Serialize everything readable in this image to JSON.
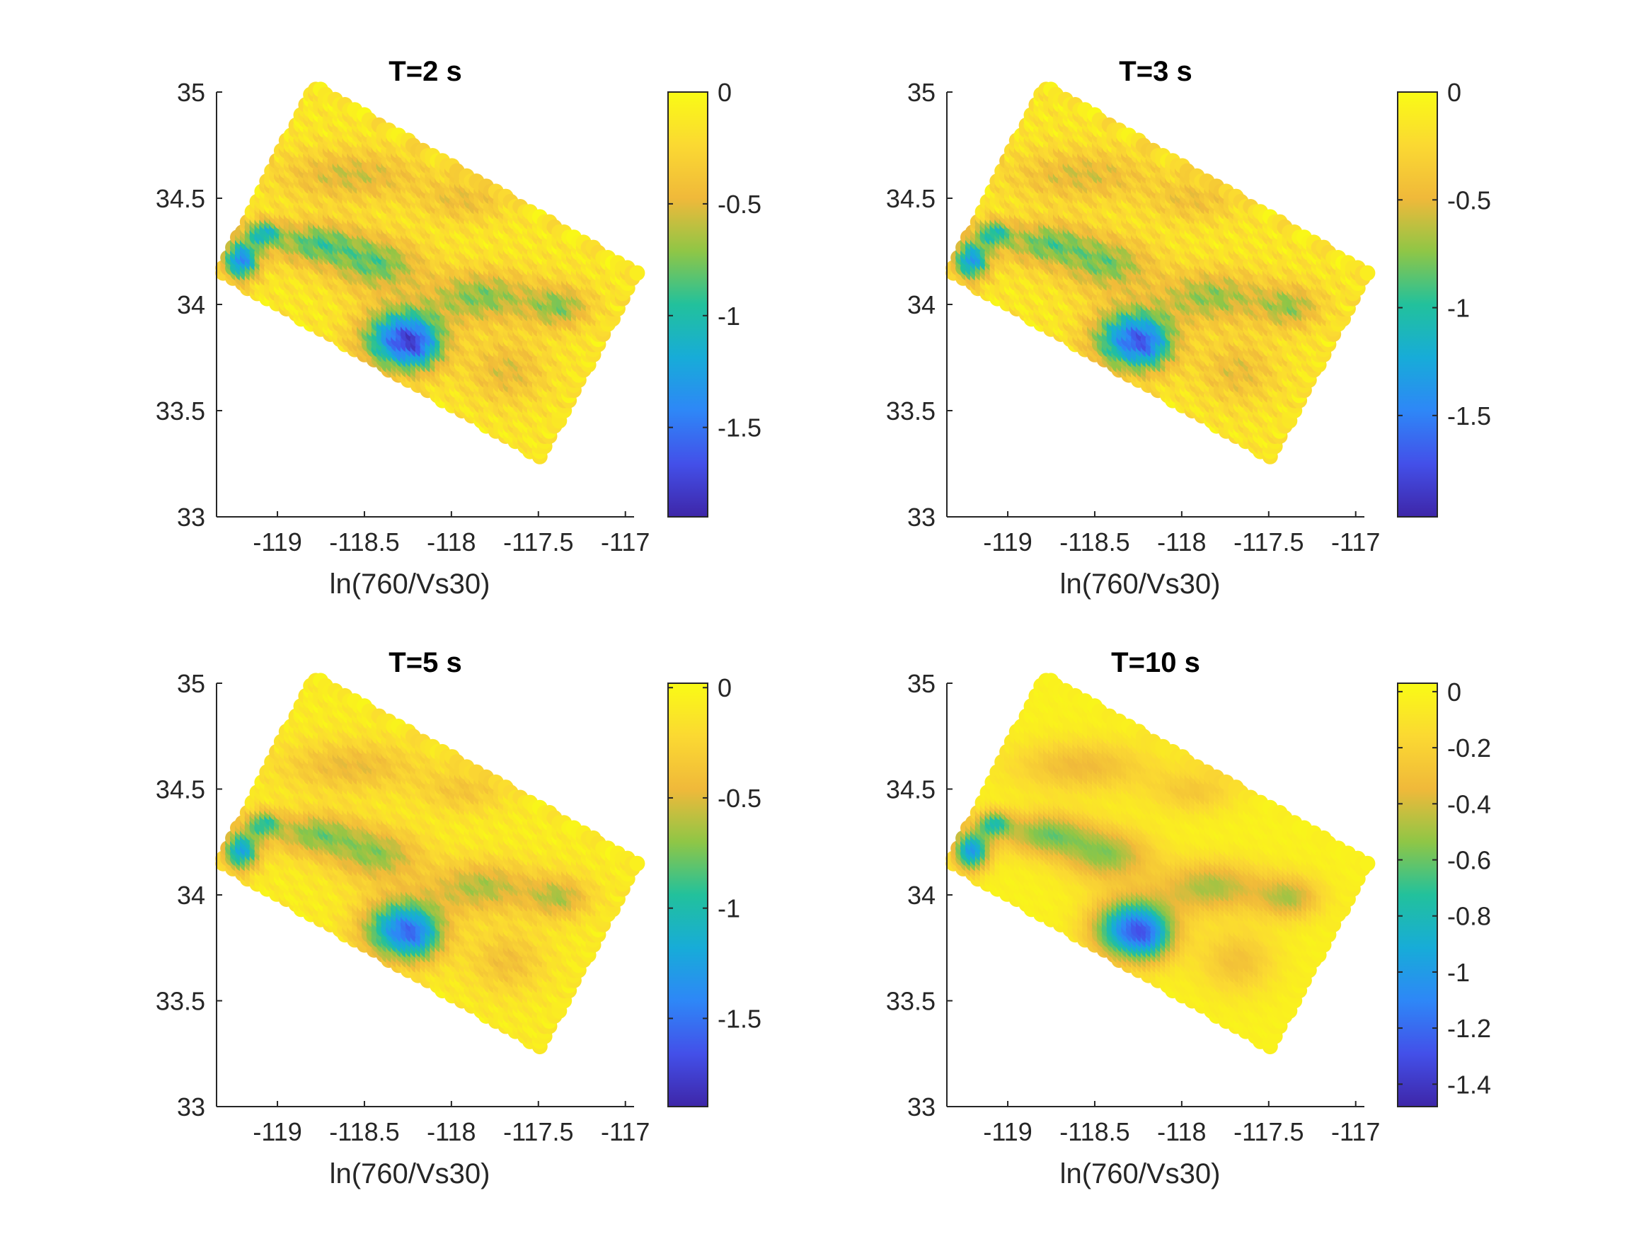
{
  "chart_data": [
    {
      "type": "scatter",
      "title": "T=2 s",
      "xlabel": "ln(760/Vs30)",
      "ylabel": "",
      "xlim": [
        -119.35,
        -116.95
      ],
      "ylim": [
        33,
        35
      ],
      "xticks": [
        -119,
        -118.5,
        -118,
        -117.5,
        -117
      ],
      "xticklabels": [
        "-119",
        "-118.5",
        "-118",
        "-117.5",
        "-117"
      ],
      "yticks": [
        33,
        33.5,
        34,
        34.5,
        35
      ],
      "yticklabels": [
        "33",
        "33.5",
        "34",
        "34.5",
        "35"
      ],
      "colorbar": {
        "range": [
          -1.9,
          0
        ],
        "ticks": [
          0,
          -0.5,
          -1,
          -1.5
        ],
        "ticklabels": [
          "0",
          "-0.5",
          "-1",
          "-1.5"
        ]
      },
      "grid": false
    },
    {
      "type": "scatter",
      "title": "T=3 s",
      "xlabel": "ln(760/Vs30)",
      "ylabel": "",
      "xlim": [
        -119.35,
        -116.95
      ],
      "ylim": [
        33,
        35
      ],
      "xticks": [
        -119,
        -118.5,
        -118,
        -117.5,
        -117
      ],
      "xticklabels": [
        "-119",
        "-118.5",
        "-118",
        "-117.5",
        "-117"
      ],
      "yticks": [
        33,
        33.5,
        34,
        34.5,
        35
      ],
      "yticklabels": [
        "33",
        "33.5",
        "34",
        "34.5",
        "35"
      ],
      "colorbar": {
        "range": [
          -1.97,
          0
        ],
        "ticks": [
          0,
          -0.5,
          -1,
          -1.5
        ],
        "ticklabels": [
          "0",
          "-0.5",
          "-1",
          "-1.5"
        ]
      },
      "grid": false
    },
    {
      "type": "scatter",
      "title": "T=5 s",
      "xlabel": "ln(760/Vs30)",
      "ylabel": "",
      "xlim": [
        -119.35,
        -116.95
      ],
      "ylim": [
        33,
        35
      ],
      "xticks": [
        -119,
        -118.5,
        -118,
        -117.5,
        -117
      ],
      "xticklabels": [
        "-119",
        "-118.5",
        "-118",
        "-117.5",
        "-117"
      ],
      "yticks": [
        33,
        33.5,
        34,
        34.5,
        35
      ],
      "yticklabels": [
        "33",
        "33.5",
        "34",
        "34.5",
        "35"
      ],
      "colorbar": {
        "range": [
          -1.9,
          0.02
        ],
        "ticks": [
          0,
          -0.5,
          -1,
          -1.5
        ],
        "ticklabels": [
          "0",
          "-0.5",
          "-1",
          "-1.5"
        ]
      },
      "grid": false
    },
    {
      "type": "scatter",
      "title": "T=10 s",
      "xlabel": "ln(760/Vs30)",
      "ylabel": "",
      "xlim": [
        -119.35,
        -116.95
      ],
      "ylim": [
        33,
        35
      ],
      "xticks": [
        -119,
        -118.5,
        -118,
        -117.5,
        -117
      ],
      "xticklabels": [
        "-119",
        "-118.5",
        "-118",
        "-117.5",
        "-117"
      ],
      "yticks": [
        33,
        33.5,
        34,
        34.5,
        35
      ],
      "yticklabels": [
        "33",
        "33.5",
        "34",
        "34.5",
        "35"
      ],
      "colorbar": {
        "range": [
          -1.48,
          0.03
        ],
        "ticks": [
          0,
          -0.2,
          -0.4,
          -0.6,
          -0.8,
          -1,
          -1.2,
          -1.4
        ],
        "ticklabels": [
          "0",
          "-0.2",
          "-0.4",
          "-0.6",
          "-0.8",
          "-1",
          "-1.2",
          "-1.4"
        ]
      },
      "grid": false
    }
  ],
  "colormap": "parula",
  "colormap_stops": [
    "#3e26a8",
    "#4350e9",
    "#2e87f7",
    "#17acd8",
    "#22c19c",
    "#8fc646",
    "#f0b93a",
    "#fbd932",
    "#f9fb15"
  ],
  "axis_color": "#262626"
}
